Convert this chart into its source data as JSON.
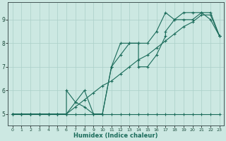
{
  "xlabel": "Humidex (Indice chaleur)",
  "xlim": [
    -0.5,
    23.5
  ],
  "ylim": [
    4.5,
    9.75
  ],
  "yticks": [
    5,
    6,
    7,
    8,
    9
  ],
  "xticks": [
    0,
    1,
    2,
    3,
    4,
    5,
    6,
    7,
    8,
    9,
    10,
    11,
    12,
    13,
    14,
    15,
    16,
    17,
    18,
    19,
    20,
    21,
    22,
    23
  ],
  "bg_color": "#cce8e2",
  "line_color": "#1a6b5a",
  "grid_color": "#aacfc8",
  "lines": [
    {
      "x": [
        0,
        1,
        2,
        3,
        4,
        5,
        6,
        7,
        8,
        9,
        10,
        11,
        12,
        13,
        14,
        15,
        16,
        17,
        18,
        19,
        20,
        21,
        22,
        23
      ],
      "y": [
        5.0,
        5.0,
        5.0,
        5.0,
        5.0,
        5.0,
        5.0,
        5.0,
        5.0,
        5.0,
        5.0,
        5.0,
        5.0,
        5.0,
        5.0,
        5.0,
        5.0,
        5.0,
        5.0,
        5.0,
        5.0,
        5.0,
        5.0,
        5.0
      ]
    },
    {
      "x": [
        0,
        1,
        2,
        3,
        4,
        5,
        6,
        6,
        7,
        8,
        9,
        10,
        11,
        12,
        13,
        14,
        14,
        15,
        16,
        17,
        17,
        18,
        19,
        20,
        21,
        22,
        23
      ],
      "y": [
        5.0,
        5.0,
        5.0,
        5.0,
        5.0,
        5.0,
        5.0,
        6.0,
        5.5,
        5.3,
        5.0,
        5.0,
        7.0,
        8.0,
        8.0,
        8.0,
        7.0,
        7.0,
        7.5,
        8.3,
        8.5,
        9.0,
        9.3,
        9.3,
        9.3,
        9.0,
        8.3
      ]
    },
    {
      "x": [
        0,
        1,
        2,
        3,
        4,
        5,
        6,
        7,
        8,
        9,
        10,
        11,
        12,
        13,
        14,
        15,
        16,
        17,
        18,
        19,
        20,
        21,
        22,
        23
      ],
      "y": [
        5.0,
        5.0,
        5.0,
        5.0,
        5.0,
        5.0,
        5.0,
        5.5,
        6.0,
        5.0,
        5.0,
        7.0,
        7.5,
        8.0,
        8.0,
        8.0,
        8.5,
        9.3,
        9.0,
        9.0,
        9.0,
        9.3,
        9.3,
        8.3
      ]
    },
    {
      "x": [
        0,
        1,
        2,
        3,
        4,
        5,
        6,
        7,
        8,
        9,
        10,
        11,
        12,
        13,
        14,
        15,
        16,
        17,
        18,
        19,
        20,
        21,
        22,
        23
      ],
      "y": [
        5.0,
        5.0,
        5.0,
        5.0,
        5.0,
        5.0,
        5.0,
        5.3,
        5.6,
        5.9,
        6.2,
        6.4,
        6.7,
        7.0,
        7.3,
        7.5,
        7.8,
        8.1,
        8.4,
        8.7,
        8.9,
        9.2,
        9.2,
        8.3
      ]
    }
  ]
}
